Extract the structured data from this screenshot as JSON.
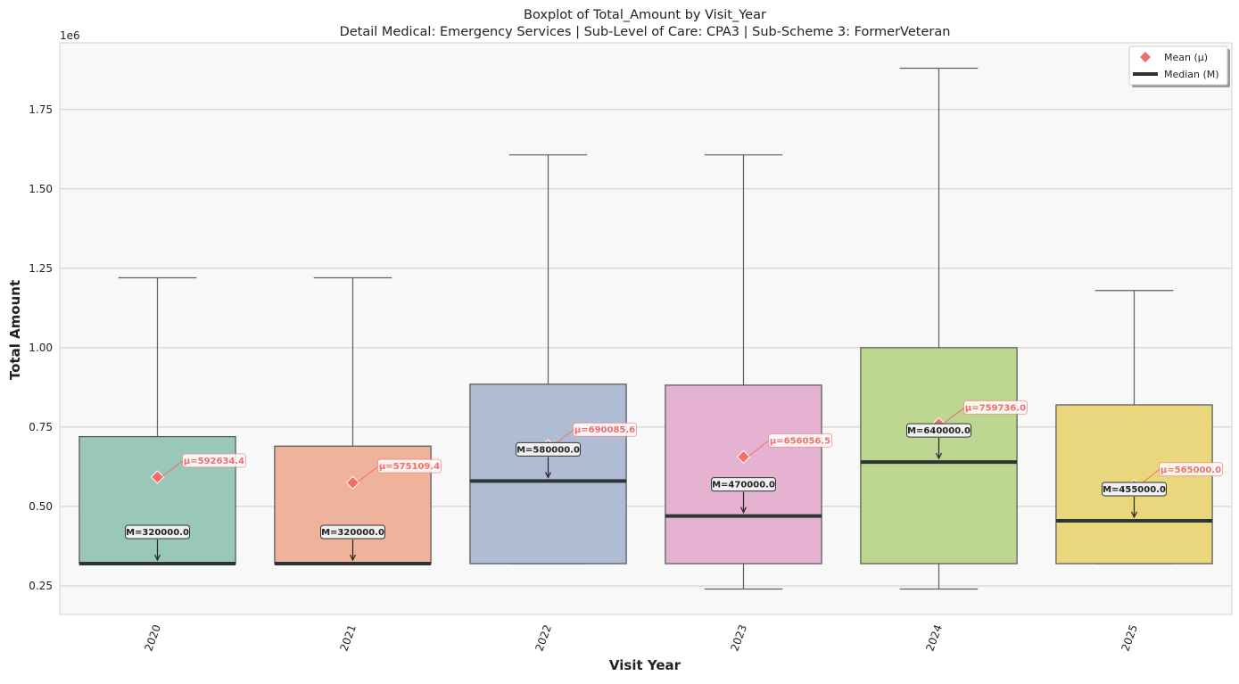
{
  "chart_data": {
    "type": "boxplot",
    "title": "Boxplot of Total_Amount by Visit_Year",
    "subtitle": "Detail Medical: Emergency Services | Sub-Level of Care: CPA3 | Sub-Scheme 3: FormerVeteran",
    "xlabel": "Visit Year",
    "ylabel": "Total Amount",
    "y_offset_label": "1e6",
    "ylim": [
      160000,
      1960000
    ],
    "yticks": [
      250000,
      500000,
      750000,
      1000000,
      1250000,
      1500000,
      1750000
    ],
    "ytick_labels": [
      "0.25",
      "0.50",
      "0.75",
      "1.00",
      "1.25",
      "1.50",
      "1.75"
    ],
    "grid": true,
    "legend_position": "top-right",
    "legend": [
      {
        "label": "Mean (μ)",
        "marker": "diamond",
        "color": "#f46d6d"
      },
      {
        "label": "Median (M)",
        "marker": "line",
        "color": "#2d3436"
      }
    ],
    "categories": [
      "2020",
      "2021",
      "2022",
      "2023",
      "2024",
      "2025"
    ],
    "boxes": [
      {
        "category": "2020",
        "whisker_low": 320000,
        "q1": 320000,
        "median": 320000,
        "q3": 720000,
        "whisker_high": 1220000,
        "mean": 592634.4,
        "mean_label": "μ=592634.4",
        "median_label": "M=320000.0",
        "color": "#99c8b9"
      },
      {
        "category": "2021",
        "whisker_low": 320000,
        "q1": 320000,
        "median": 320000,
        "q3": 690000,
        "whisker_high": 1220000,
        "mean": 575109.4,
        "mean_label": "μ=575109.4",
        "median_label": "M=320000.0",
        "color": "#efb29a"
      },
      {
        "category": "2022",
        "whisker_low": 320000,
        "q1": 320000,
        "median": 580000,
        "q3": 885000,
        "whisker_high": 1607000,
        "mean": 690085.6,
        "mean_label": "μ=690085.6",
        "median_label": "M=580000.0",
        "color": "#b0bcd4"
      },
      {
        "category": "2023",
        "whisker_low": 240000,
        "q1": 320000,
        "median": 470000,
        "q3": 882000,
        "whisker_high": 1607000,
        "mean": 656056.5,
        "mean_label": "μ=656056.5",
        "median_label": "M=470000.0",
        "color": "#e5b2d2"
      },
      {
        "category": "2024",
        "whisker_low": 240000,
        "q1": 320000,
        "median": 640000,
        "q3": 1000000,
        "whisker_high": 1880000,
        "mean": 759736.0,
        "mean_label": "μ=759736.0",
        "median_label": "M=640000.0",
        "color": "#bdd690"
      },
      {
        "category": "2025",
        "whisker_low": 320000,
        "q1": 320000,
        "median": 455000,
        "q3": 820000,
        "whisker_high": 1180000,
        "mean": 565000.0,
        "mean_label": "μ=565000.0",
        "median_label": "M=455000.0",
        "color": "#ead67c"
      }
    ],
    "colors": {
      "plot_background": "#f8f8f8",
      "grid": "#cccccc",
      "mean": "#f46d6d",
      "median": "#2d3436",
      "whisker": "#5a5f5f"
    }
  }
}
